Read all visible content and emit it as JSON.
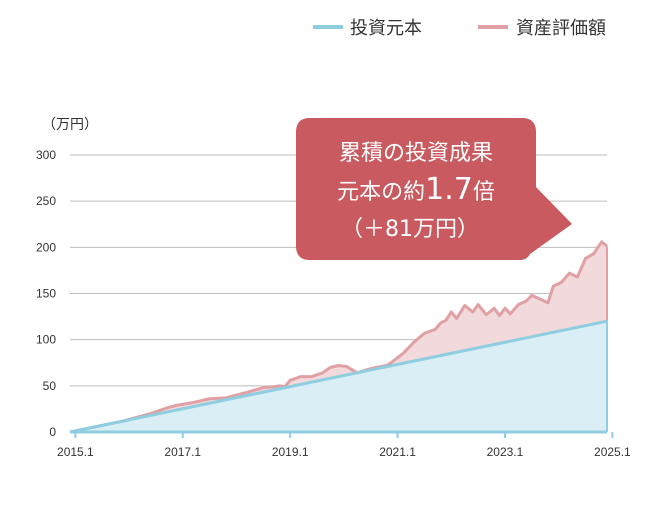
{
  "chart_data": {
    "type": "area",
    "unit_label": "（万円）",
    "x_ticks": [
      "2015.1",
      "2017.1",
      "2019.1",
      "2021.1",
      "2023.1",
      "2025.1"
    ],
    "xlim": [
      2015.0,
      2025.0
    ],
    "ylim": [
      0,
      300
    ],
    "y_ticks": [
      0,
      50,
      100,
      150,
      200,
      250,
      300
    ],
    "grid": "horizontal",
    "legend_position": "top-right",
    "series": [
      {
        "name": "投資元本",
        "color": "#8fcde0",
        "fill": "#d9eef5",
        "x": [
          2015.0,
          2025.0
        ],
        "y": [
          0,
          120
        ]
      },
      {
        "name": "資産評価額",
        "color": "#e0a0a4",
        "fill": "#f2d9db",
        "x": [
          2015.0,
          2015.5,
          2016.0,
          2016.5,
          2016.8,
          2017.0,
          2017.3,
          2017.6,
          2017.9,
          2018.1,
          2018.3,
          2018.6,
          2018.8,
          2018.9,
          2019.0,
          2019.1,
          2019.3,
          2019.5,
          2019.7,
          2019.85,
          2020.0,
          2020.15,
          2020.35,
          2020.5,
          2020.7,
          2020.9,
          2021.0,
          2021.2,
          2021.4,
          2021.6,
          2021.8,
          2021.9,
          2022.0,
          2022.1,
          2022.2,
          2022.35,
          2022.5,
          2022.6,
          2022.75,
          2022.9,
          2023.0,
          2023.1,
          2023.2,
          2023.35,
          2023.5,
          2023.6,
          2023.75,
          2023.9,
          2024.0,
          2024.15,
          2024.3,
          2024.45,
          2024.6,
          2024.75,
          2024.9,
          2025.0
        ],
        "y": [
          0,
          6,
          12,
          20,
          26,
          29,
          32,
          36,
          37,
          40,
          43,
          48,
          49,
          50,
          49,
          56,
          60,
          60,
          64,
          70,
          72,
          71,
          64,
          67,
          70,
          72,
          76,
          85,
          97,
          107,
          111,
          118,
          121,
          130,
          123,
          137,
          130,
          138,
          127,
          134,
          126,
          134,
          128,
          138,
          142,
          148,
          144,
          140,
          158,
          162,
          172,
          168,
          188,
          193,
          206,
          201
        ]
      }
    ],
    "annotation": {
      "line1": "累積の投資成果",
      "line2_prefix": "元本の約",
      "line2_value": "1.7",
      "line2_suffix": "倍",
      "line3": "（＋81万円）",
      "color": "#c85a60"
    }
  }
}
